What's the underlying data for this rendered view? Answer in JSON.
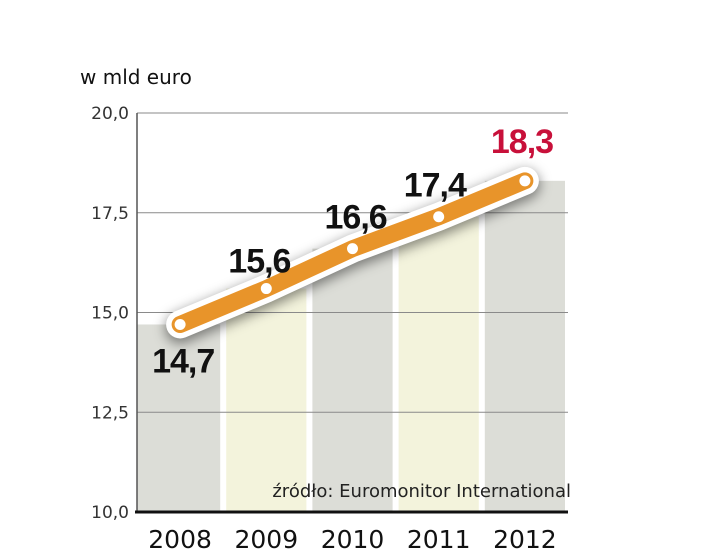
{
  "chart_data": {
    "type": "line",
    "title": "",
    "ylabel": "w mld euro",
    "xlabel": "",
    "categories": [
      "2008",
      "2009",
      "2010",
      "2011",
      "2012"
    ],
    "values": [
      14.7,
      15.6,
      16.6,
      17.4,
      18.3
    ],
    "data_labels": [
      "14,7",
      "15,6",
      "16,6",
      "17,4",
      "18,3"
    ],
    "ylim": [
      10,
      20
    ],
    "yticks": [
      10,
      12.5,
      15,
      17.5,
      20
    ],
    "ytick_labels": [
      "10,0",
      "12,5",
      "15,0",
      "17,5",
      "20,0"
    ],
    "grid": true,
    "source": "źródło: Euromonitor International",
    "colors": {
      "line": "#e8942a",
      "bar_grey": "#dcddd7",
      "bar_yellow": "#f3f3dc",
      "highlight": "#c8103a",
      "label": "#111111"
    }
  }
}
